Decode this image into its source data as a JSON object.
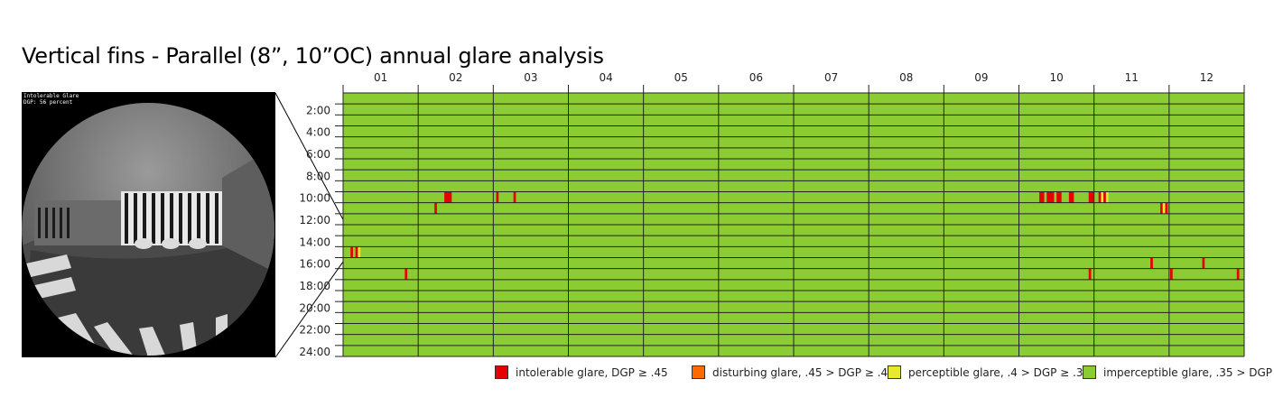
{
  "title": "Vertical fins - Parallel (8”, 10”OC) annual glare analysis",
  "render": {
    "label_line1": "Intolerable Glare",
    "label_line2": "DGP: 56 percent"
  },
  "colors": {
    "intolerable": "#e60000",
    "disturbing": "#ff6a00",
    "perceptible": "#e8e82e",
    "imperceptible": "#8ccc33",
    "grid": "#222222"
  },
  "chart_data": {
    "type": "heatmap",
    "title": "Vertical fins - Parallel (8”, 10”OC) annual glare analysis",
    "x_tick_labels": [
      "01",
      "02",
      "03",
      "04",
      "05",
      "06",
      "07",
      "08",
      "09",
      "10",
      "11",
      "12"
    ],
    "y_tick_labels": [
      "2:00",
      "4:00",
      "6:00",
      "8:00",
      "10:00",
      "12:00",
      "14:00",
      "16:00",
      "18:00",
      "20:00",
      "22:00",
      "24:00"
    ],
    "x_range_days": [
      0,
      365
    ],
    "y_range_hours": [
      0,
      24
    ],
    "default_category": "imperceptible",
    "legend": [
      {
        "key": "intolerable",
        "label": "intolerable glare, DGP ≥ .45"
      },
      {
        "key": "disturbing",
        "label": "disturbing glare, .45 > DGP ≥ .4"
      },
      {
        "key": "perceptible",
        "label": "perceptible glare, .4 > DGP ≥ .35"
      },
      {
        "key": "imperceptible",
        "label": "imperceptible glare, .35 > DGP"
      }
    ],
    "events": [
      {
        "day": 3,
        "days": 1,
        "hour": 14,
        "level": "intolerable"
      },
      {
        "day": 5,
        "days": 1,
        "hour": 14,
        "level": "intolerable"
      },
      {
        "day": 6,
        "days": 1,
        "hour": 14,
        "level": "perceptible"
      },
      {
        "day": 25,
        "days": 1,
        "hour": 16,
        "level": "intolerable"
      },
      {
        "day": 37,
        "days": 1,
        "hour": 10,
        "level": "intolerable"
      },
      {
        "day": 41,
        "days": 3,
        "hour": 9,
        "level": "intolerable"
      },
      {
        "day": 62,
        "days": 1,
        "hour": 9,
        "level": "intolerable"
      },
      {
        "day": 69,
        "days": 1,
        "hour": 9,
        "level": "intolerable"
      },
      {
        "day": 282,
        "days": 2,
        "hour": 9,
        "level": "intolerable"
      },
      {
        "day": 285,
        "days": 3,
        "hour": 9,
        "level": "intolerable"
      },
      {
        "day": 289,
        "days": 2,
        "hour": 9,
        "level": "intolerable"
      },
      {
        "day": 294,
        "days": 2,
        "hour": 9,
        "level": "intolerable"
      },
      {
        "day": 302,
        "days": 1,
        "hour": 16,
        "level": "intolerable"
      },
      {
        "day": 302,
        "days": 2,
        "hour": 9,
        "level": "intolerable"
      },
      {
        "day": 306,
        "days": 1,
        "hour": 9,
        "level": "intolerable"
      },
      {
        "day": 307,
        "days": 1,
        "hour": 9,
        "level": "perceptible"
      },
      {
        "day": 308,
        "days": 1,
        "hour": 9,
        "level": "intolerable"
      },
      {
        "day": 309,
        "days": 1,
        "hour": 9,
        "level": "perceptible"
      },
      {
        "day": 327,
        "days": 1,
        "hour": 15,
        "level": "intolerable"
      },
      {
        "day": 331,
        "days": 1,
        "hour": 10,
        "level": "intolerable"
      },
      {
        "day": 332,
        "days": 1,
        "hour": 10,
        "level": "perceptible"
      },
      {
        "day": 333,
        "days": 1,
        "hour": 10,
        "level": "intolerable"
      },
      {
        "day": 335,
        "days": 1,
        "hour": 16,
        "level": "intolerable"
      },
      {
        "day": 348,
        "days": 1,
        "hour": 15,
        "level": "intolerable"
      },
      {
        "day": 362,
        "days": 1,
        "hour": 16,
        "level": "intolerable"
      }
    ]
  }
}
